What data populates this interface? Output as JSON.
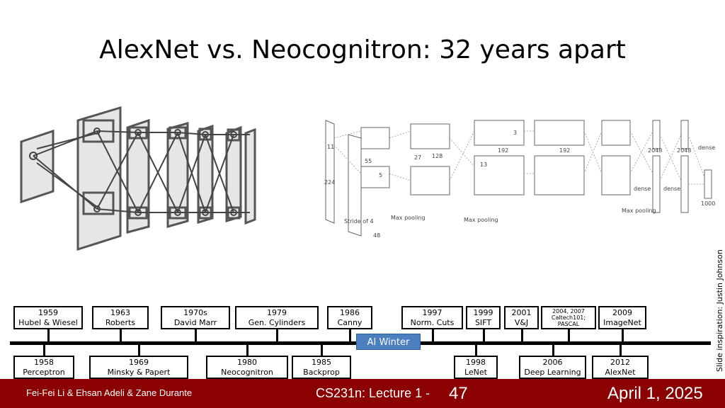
{
  "slide_title": "AlexNet vs. Neocognitron: 32 years apart",
  "side_credit": "Slide inspiration: Justin Johnson",
  "alexnet_labels": {
    "input_size": "224",
    "stride": "Stride of 4",
    "k11": "11",
    "k5": "5",
    "k3": "3",
    "s55": "55",
    "s48": "48",
    "s27": "27",
    "s128": "128",
    "s13": "13",
    "s192": "192",
    "maxpool": "Max pooling",
    "dense": "dense",
    "d2048": "2048",
    "d1000": "1000"
  },
  "timeline": {
    "winter_label": "AI Winter",
    "top": [
      {
        "year": "1959",
        "name": "Hubel & Wiesel"
      },
      {
        "year": "1963",
        "name": "Roberts"
      },
      {
        "year": "1970s",
        "name": "David Marr"
      },
      {
        "year": "1979",
        "name": "Gen. Cylinders"
      },
      {
        "year": "1986",
        "name": "Canny"
      },
      {
        "year": "1997",
        "name": "Norm. Cuts"
      },
      {
        "year": "1999",
        "name": "SIFT"
      },
      {
        "year": "2001",
        "name": "V&J"
      },
      {
        "year": "2004, 2007",
        "name": "Caltech101; PASCAL"
      },
      {
        "year": "2009",
        "name": "ImageNet"
      }
    ],
    "bottom": [
      {
        "year": "1958",
        "name": "Perceptron"
      },
      {
        "year": "1969",
        "name": "Minsky & Papert"
      },
      {
        "year": "1980",
        "name": "Neocognitron"
      },
      {
        "year": "1985",
        "name": "Backprop"
      },
      {
        "year": "1998",
        "name": "LeNet"
      },
      {
        "year": "2006",
        "name": "Deep Learning"
      },
      {
        "year": "2012",
        "name": "AlexNet"
      }
    ]
  },
  "footer": {
    "authors": "Fei-Fei Li & Ehsan Adeli & Zane Durante",
    "course": "CS231n: Lecture 1 -",
    "page": "47",
    "date": "April 1, 2025"
  }
}
